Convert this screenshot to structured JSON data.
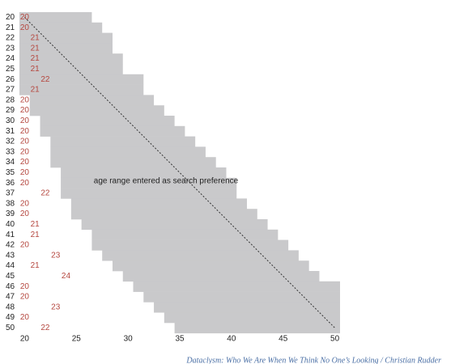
{
  "chart_data": {
    "type": "range",
    "categories": [
      20,
      21,
      22,
      23,
      24,
      25,
      26,
      27,
      28,
      29,
      30,
      31,
      32,
      33,
      34,
      35,
      36,
      37,
      38,
      39,
      40,
      41,
      42,
      43,
      44,
      45,
      46,
      47,
      48,
      49,
      50
    ],
    "range_min": [
      20,
      20,
      20,
      20,
      20,
      20,
      20,
      20,
      21,
      21,
      22,
      22,
      23,
      23,
      23,
      24,
      24,
      24,
      25,
      25,
      26,
      27,
      27,
      28,
      29,
      30,
      31,
      32,
      33,
      34,
      35
    ],
    "range_max": [
      26,
      27,
      28,
      28,
      29,
      29,
      31,
      31,
      32,
      33,
      34,
      35,
      36,
      37,
      38,
      39,
      40,
      40,
      41,
      42,
      43,
      44,
      45,
      46,
      47,
      48,
      50,
      50,
      50,
      50,
      50
    ],
    "youngest": [
      20,
      20,
      21,
      21,
      21,
      21,
      22,
      21,
      20,
      20,
      20,
      20,
      20,
      20,
      20,
      20,
      20,
      22,
      20,
      20,
      21,
      21,
      20,
      23,
      21,
      24,
      20,
      20,
      23,
      20,
      22
    ],
    "range_color": "#c9c9cb",
    "youngest_color": "#b5473f",
    "annotation": "age range entered as search preference",
    "source": "Dataclysm: Who We Are When We Think No One’s Looking / Christian Rudder",
    "xlim": [
      19.5,
      50.5
    ],
    "xticks": [
      20,
      25,
      30,
      35,
      40,
      45,
      50
    ],
    "diagonal": true
  }
}
